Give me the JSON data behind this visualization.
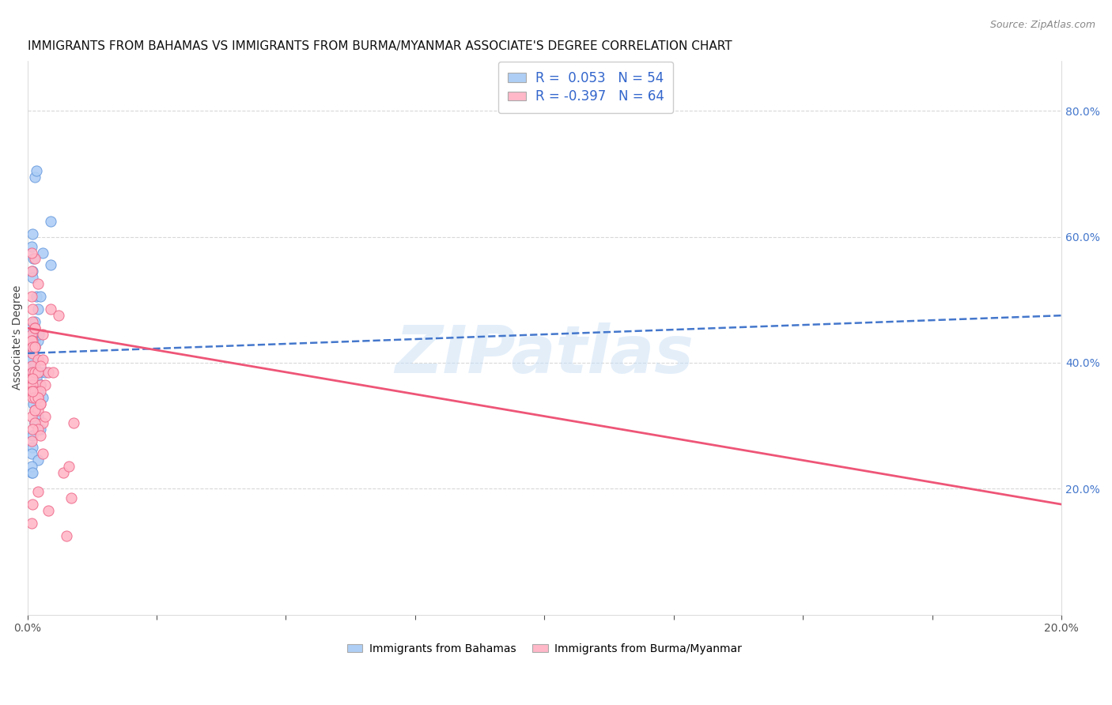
{
  "title": "IMMIGRANTS FROM BAHAMAS VS IMMIGRANTS FROM BURMA/MYANMAR ASSOCIATE'S DEGREE CORRELATION CHART",
  "source": "Source: ZipAtlas.com",
  "ylabel": "Associate's Degree",
  "xlim": [
    0.0,
    0.2
  ],
  "ylim": [
    0.0,
    0.88
  ],
  "watermark": "ZIPatlas",
  "series1": {
    "name": "Immigrants from Bahamas",
    "color": "#aecef5",
    "border_color": "#6699dd",
    "line_color": "#4477cc",
    "line_style": "--",
    "trend_y0": 0.415,
    "trend_y1": 0.475,
    "x": [
      0.0008,
      0.001,
      0.0012,
      0.0015,
      0.0018,
      0.002,
      0.0022,
      0.0025,
      0.0008,
      0.001,
      0.0012,
      0.0015,
      0.0008,
      0.001,
      0.0012,
      0.0008,
      0.001,
      0.0008,
      0.0015,
      0.0018,
      0.002,
      0.0025,
      0.003,
      0.0012,
      0.0015,
      0.002,
      0.0025,
      0.001,
      0.0018,
      0.0015,
      0.001,
      0.0008,
      0.002,
      0.0008,
      0.0015,
      0.0025,
      0.003,
      0.001,
      0.0015,
      0.0008,
      0.001,
      0.0008,
      0.0015,
      0.0035,
      0.002,
      0.0015,
      0.0008,
      0.001,
      0.0025,
      0.0045,
      0.0008,
      0.001,
      0.0045,
      0.002
    ],
    "y": [
      0.425,
      0.545,
      0.565,
      0.435,
      0.505,
      0.435,
      0.445,
      0.385,
      0.405,
      0.415,
      0.445,
      0.425,
      0.395,
      0.415,
      0.385,
      0.375,
      0.385,
      0.405,
      0.695,
      0.705,
      0.355,
      0.365,
      0.345,
      0.335,
      0.325,
      0.315,
      0.295,
      0.285,
      0.375,
      0.305,
      0.265,
      0.255,
      0.245,
      0.225,
      0.355,
      0.365,
      0.575,
      0.535,
      0.465,
      0.455,
      0.445,
      0.405,
      0.395,
      0.385,
      0.355,
      0.305,
      0.235,
      0.225,
      0.505,
      0.555,
      0.585,
      0.605,
      0.625,
      0.485
    ]
  },
  "series2": {
    "name": "Immigrants from Burma/Myanmar",
    "color": "#ffb8c8",
    "border_color": "#ee6688",
    "line_color": "#ee5577",
    "line_style": "-",
    "trend_y0": 0.455,
    "trend_y1": 0.175,
    "x": [
      0.0008,
      0.001,
      0.0008,
      0.0015,
      0.001,
      0.0008,
      0.0015,
      0.001,
      0.0008,
      0.0015,
      0.001,
      0.002,
      0.0008,
      0.001,
      0.0015,
      0.0008,
      0.002,
      0.001,
      0.0015,
      0.0025,
      0.001,
      0.0008,
      0.0015,
      0.002,
      0.001,
      0.0025,
      0.0015,
      0.002,
      0.0008,
      0.003,
      0.0015,
      0.002,
      0.001,
      0.0025,
      0.0008,
      0.0015,
      0.003,
      0.002,
      0.001,
      0.0035,
      0.0025,
      0.0015,
      0.002,
      0.004,
      0.001,
      0.003,
      0.0008,
      0.0025,
      0.0015,
      0.0035,
      0.0045,
      0.002,
      0.005,
      0.003,
      0.001,
      0.006,
      0.007,
      0.0008,
      0.0075,
      0.008,
      0.0025,
      0.009,
      0.004,
      0.0085
    ],
    "y": [
      0.505,
      0.465,
      0.545,
      0.565,
      0.485,
      0.445,
      0.455,
      0.435,
      0.435,
      0.425,
      0.415,
      0.405,
      0.395,
      0.385,
      0.455,
      0.375,
      0.525,
      0.425,
      0.385,
      0.365,
      0.365,
      0.355,
      0.355,
      0.345,
      0.345,
      0.335,
      0.325,
      0.325,
      0.315,
      0.305,
      0.305,
      0.295,
      0.295,
      0.285,
      0.275,
      0.425,
      0.445,
      0.385,
      0.375,
      0.365,
      0.355,
      0.345,
      0.345,
      0.385,
      0.175,
      0.405,
      0.575,
      0.395,
      0.325,
      0.315,
      0.485,
      0.195,
      0.385,
      0.255,
      0.355,
      0.475,
      0.225,
      0.145,
      0.125,
      0.235,
      0.335,
      0.305,
      0.165,
      0.185
    ]
  },
  "legend": {
    "R1": "0.053",
    "N1": "54",
    "R2": "-0.397",
    "N2": "64"
  },
  "background_color": "#ffffff",
  "grid_color": "#d8d8d8",
  "title_fontsize": 11,
  "axis_fontsize": 10
}
